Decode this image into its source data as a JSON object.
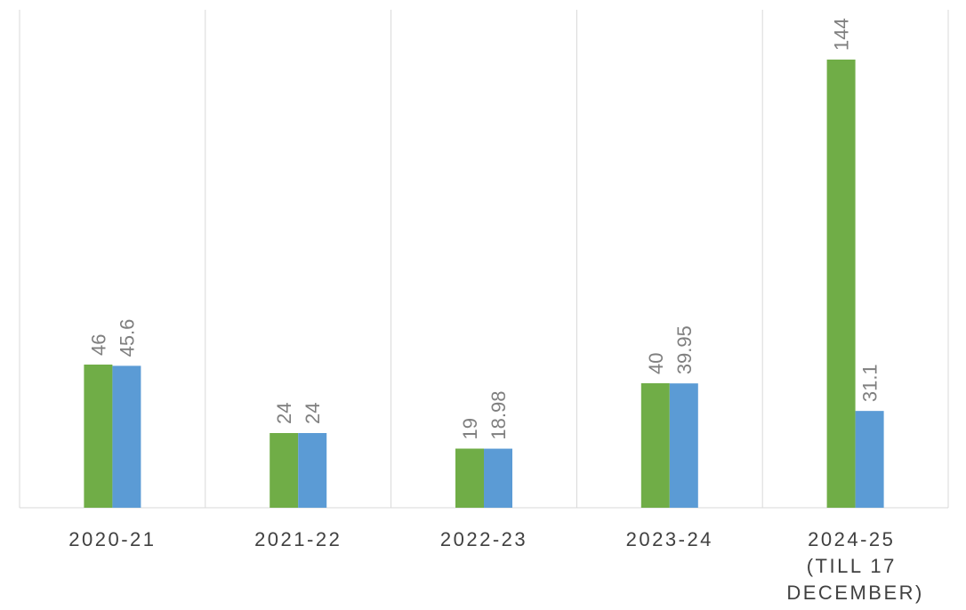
{
  "chart_data": {
    "type": "bar",
    "categories": [
      "2020-21",
      "2021-22",
      "2022-23",
      "2023-24",
      "2024-25 (TILL 17 DECEMBER)"
    ],
    "series": [
      {
        "color": "#70ad47",
        "values": [
          46,
          24,
          19,
          40,
          144
        ]
      },
      {
        "color": "#5b9bd5",
        "values": [
          45.6,
          24,
          18.98,
          39.95,
          31.1
        ]
      }
    ],
    "ylim": [
      0,
      160
    ],
    "data_labels": true
  }
}
